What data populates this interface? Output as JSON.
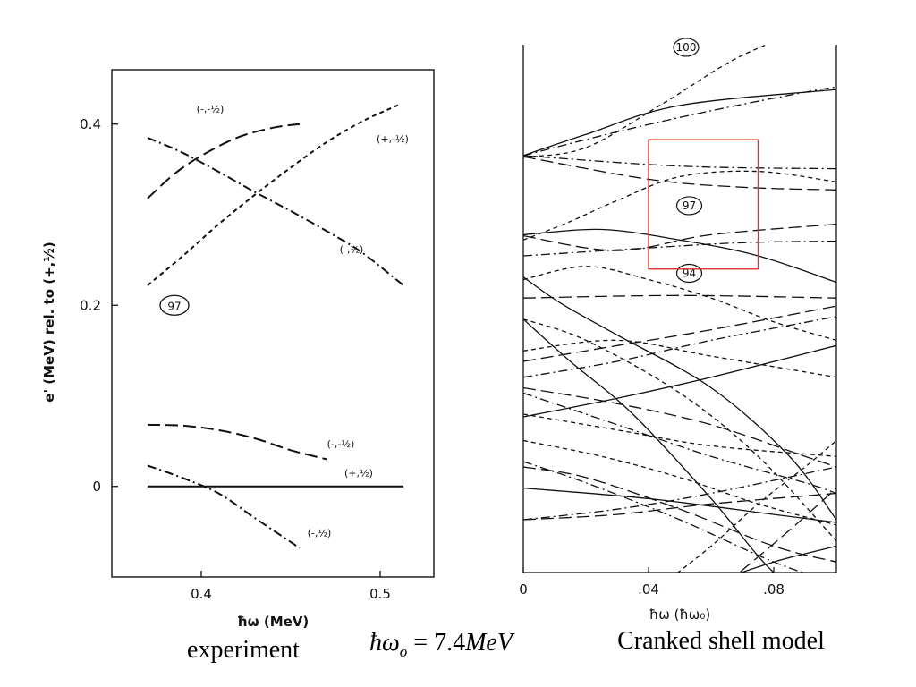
{
  "chart_data": [
    {
      "type": "line",
      "name": "experiment-panel",
      "xlabel": "ħω (MeV)",
      "ylabel": "e' (MeV) rel. to (+,½)",
      "xlim": [
        0.35,
        0.53
      ],
      "ylim": [
        -0.1,
        0.46
      ],
      "xticks": [
        0.4,
        0.5
      ],
      "xtick_labels": [
        "0.4",
        "0.5"
      ],
      "yticks": [
        0,
        0.2,
        0.4
      ],
      "ytick_labels": [
        "0",
        "0.2",
        "0.4"
      ],
      "region_label": "97",
      "region_label_pos": [
        0.385,
        0.2
      ],
      "series": [
        {
          "name": "(-,-½)",
          "label_text": "(-,-½)",
          "style": "longdash",
          "x": [
            0.37,
            0.385,
            0.4,
            0.42,
            0.44,
            0.455
          ],
          "y": [
            0.318,
            0.345,
            0.365,
            0.385,
            0.396,
            0.4
          ],
          "label_x": 0.405,
          "label_y": 0.413
        },
        {
          "name": "(+,-½)",
          "label_text": "(+,-½)",
          "style": "dash",
          "x": [
            0.37,
            0.39,
            0.41,
            0.43,
            0.45,
            0.47,
            0.49,
            0.51
          ],
          "y": [
            0.222,
            0.255,
            0.29,
            0.322,
            0.352,
            0.38,
            0.403,
            0.421
          ],
          "label_x": 0.507,
          "label_y": 0.38
        },
        {
          "name": "(-,½)",
          "label_text": "(-,½)",
          "style": "dashdot",
          "x": [
            0.37,
            0.39,
            0.41,
            0.43,
            0.45,
            0.47,
            0.49,
            0.513
          ],
          "y": [
            0.385,
            0.368,
            0.347,
            0.325,
            0.304,
            0.282,
            0.258,
            0.222
          ],
          "label_x": 0.484,
          "label_y": 0.258
        },
        {
          "name": "(-,-½) lower",
          "label_text": "(-,-½)",
          "style": "longdash",
          "x": [
            0.37,
            0.39,
            0.41,
            0.43,
            0.45,
            0.47
          ],
          "y": [
            0.068,
            0.067,
            0.062,
            0.053,
            0.04,
            0.03
          ],
          "label_x": 0.478,
          "label_y": 0.043
        },
        {
          "name": "(+,½)",
          "label_text": "(+,½)",
          "style": "solid",
          "x": [
            0.37,
            0.513
          ],
          "y": [
            0.0,
            0.0
          ],
          "label_x": 0.488,
          "label_y": 0.011
        },
        {
          "name": "(-,½) lower",
          "label_text": "(-,½)",
          "style": "dashdot",
          "x": [
            0.37,
            0.39,
            0.41,
            0.43,
            0.455
          ],
          "y": [
            0.023,
            0.009,
            -0.008,
            -0.035,
            -0.068
          ],
          "label_x": 0.466,
          "label_y": -0.055
        }
      ]
    },
    {
      "type": "line",
      "name": "cranked-shell-model-panel",
      "xlabel": "ħω (ħω₀)",
      "ylabel": "",
      "xlim": [
        0,
        0.1
      ],
      "ylim": [
        0,
        1
      ],
      "xticks": [
        0,
        0.04,
        0.08
      ],
      "xtick_labels": [
        "0",
        ".04",
        ".08"
      ],
      "highlight_box": {
        "x": [
          0.04,
          0.075
        ],
        "y": [
          0.575,
          0.82
        ],
        "color": "#e03030"
      },
      "region_labels": [
        {
          "text": "100",
          "x": 0.052,
          "y": 0.995
        },
        {
          "text": "97",
          "x": 0.053,
          "y": 0.695
        },
        {
          "text": "94",
          "x": 0.053,
          "y": 0.567
        }
      ],
      "series": [
        {
          "style": "solid",
          "x": [
            0,
            0.02,
            0.05,
            0.1
          ],
          "y": [
            0.79,
            0.83,
            0.885,
            0.915
          ]
        },
        {
          "style": "dash",
          "x": [
            0,
            0.02,
            0.045,
            0.07,
            0.1
          ],
          "y": [
            0.787,
            0.805,
            0.89,
            0.98,
            1.05
          ]
        },
        {
          "style": "dashdot",
          "x": [
            0,
            0.03,
            0.06,
            0.09,
            0.1
          ],
          "y": [
            0.79,
            0.835,
            0.875,
            0.91,
            0.92
          ]
        },
        {
          "style": "longdash",
          "x": [
            0,
            0.04,
            0.07,
            0.1
          ],
          "y": [
            0.788,
            0.745,
            0.73,
            0.725
          ]
        },
        {
          "style": "dashdot",
          "x": [
            0,
            0.05,
            0.1
          ],
          "y": [
            0.79,
            0.77,
            0.765
          ]
        },
        {
          "style": "dash",
          "x": [
            0,
            0.015,
            0.03,
            0.05,
            0.075,
            0.1
          ],
          "y": [
            0.63,
            0.665,
            0.705,
            0.75,
            0.76,
            0.74
          ]
        },
        {
          "style": "solid",
          "x": [
            0,
            0.025,
            0.05,
            0.075,
            0.1
          ],
          "y": [
            0.64,
            0.65,
            0.63,
            0.6,
            0.55
          ]
        },
        {
          "style": "longdash",
          "x": [
            0,
            0.03,
            0.06,
            0.1
          ],
          "y": [
            0.638,
            0.61,
            0.64,
            0.66
          ]
        },
        {
          "style": "dashdot",
          "x": [
            0,
            0.04,
            0.07,
            0.1
          ],
          "y": [
            0.6,
            0.615,
            0.625,
            0.628
          ]
        },
        {
          "style": "dash",
          "x": [
            0,
            0.02,
            0.04,
            0.06,
            0.08,
            0.1
          ],
          "y": [
            0.555,
            0.58,
            0.555,
            0.52,
            0.475,
            0.44
          ]
        },
        {
          "style": "longdash",
          "x": [
            0,
            0.05,
            0.1
          ],
          "y": [
            0.52,
            0.525,
            0.52
          ]
        },
        {
          "style": "solid",
          "x": [
            0,
            0.012,
            0.03,
            0.06,
            0.085,
            0.1
          ],
          "y": [
            0.56,
            0.51,
            0.45,
            0.35,
            0.22,
            0.1
          ]
        },
        {
          "style": "solid",
          "x": [
            0,
            0.015,
            0.035,
            0.06,
            0.08,
            0.1
          ],
          "y": [
            0.48,
            0.4,
            0.3,
            0.14,
            0.0,
            -0.08
          ]
        },
        {
          "style": "dash",
          "x": [
            0,
            0.02,
            0.05,
            0.075,
            0.1
          ],
          "y": [
            0.48,
            0.44,
            0.34,
            0.22,
            0.06
          ]
        },
        {
          "style": "solid",
          "x": [
            0,
            0.03,
            0.06,
            0.1
          ],
          "y": [
            0.295,
            0.33,
            0.37,
            0.43
          ]
        },
        {
          "style": "longdash",
          "x": [
            0,
            0.03,
            0.06,
            0.1
          ],
          "y": [
            0.4,
            0.43,
            0.46,
            0.505
          ]
        },
        {
          "style": "dashdot",
          "x": [
            0,
            0.03,
            0.06,
            0.1
          ],
          "y": [
            0.37,
            0.4,
            0.44,
            0.485
          ]
        },
        {
          "style": "dash",
          "x": [
            0,
            0.03,
            0.06,
            0.1
          ],
          "y": [
            0.42,
            0.44,
            0.41,
            0.37
          ]
        },
        {
          "style": "longdash",
          "x": [
            0,
            0.03,
            0.06,
            0.09,
            0.1
          ],
          "y": [
            0.35,
            0.32,
            0.28,
            0.22,
            0.2
          ]
        },
        {
          "style": "dashdot",
          "x": [
            0,
            0.03,
            0.06,
            0.09,
            0.1
          ],
          "y": [
            0.34,
            0.28,
            0.22,
            0.17,
            0.15
          ]
        },
        {
          "style": "dash",
          "x": [
            0,
            0.03,
            0.06,
            0.1
          ],
          "y": [
            0.3,
            0.27,
            0.24,
            0.22
          ]
        },
        {
          "style": "solid",
          "x": [
            0,
            0.04,
            0.08,
            0.1
          ],
          "y": [
            0.16,
            0.14,
            0.11,
            0.095
          ]
        },
        {
          "style": "longdash",
          "x": [
            0,
            0.02,
            0.05,
            0.08,
            0.1
          ],
          "y": [
            0.2,
            0.18,
            0.12,
            0.05,
            0.02
          ]
        },
        {
          "style": "dashdot",
          "x": [
            0,
            0.02,
            0.05,
            0.08,
            0.1
          ],
          "y": [
            0.21,
            0.17,
            0.1,
            0.02,
            -0.02
          ]
        },
        {
          "style": "dash",
          "x": [
            0,
            0.025,
            0.05,
            0.075,
            0.1
          ],
          "y": [
            0.25,
            0.22,
            0.18,
            0.13,
            0.09
          ]
        },
        {
          "style": "dashdot",
          "x": [
            0,
            0.03,
            0.06,
            0.1
          ],
          "y": [
            0.1,
            0.12,
            0.15,
            0.2
          ]
        },
        {
          "style": "longdash",
          "x": [
            0,
            0.03,
            0.06,
            0.1
          ],
          "y": [
            0.1,
            0.11,
            0.13,
            0.15
          ]
        },
        {
          "style": "dash",
          "x": [
            0.045,
            0.06,
            0.075,
            0.09,
            0.1
          ],
          "y": [
            -0.02,
            0.05,
            0.13,
            0.2,
            0.25
          ]
        },
        {
          "style": "solid",
          "x": [
            0.06,
            0.08,
            0.1
          ],
          "y": [
            -0.02,
            0.02,
            0.05
          ]
        },
        {
          "style": "longdash",
          "x": [
            0.065,
            0.085,
            0.1
          ],
          "y": [
            -0.02,
            0.08,
            0.16
          ]
        }
      ]
    }
  ],
  "captions": {
    "left": "experiment",
    "middle_omega": "ħω",
    "middle_sub": "o",
    "middle_value": " = 7.4",
    "middle_unit": "MeV",
    "right": "Cranked shell model"
  }
}
